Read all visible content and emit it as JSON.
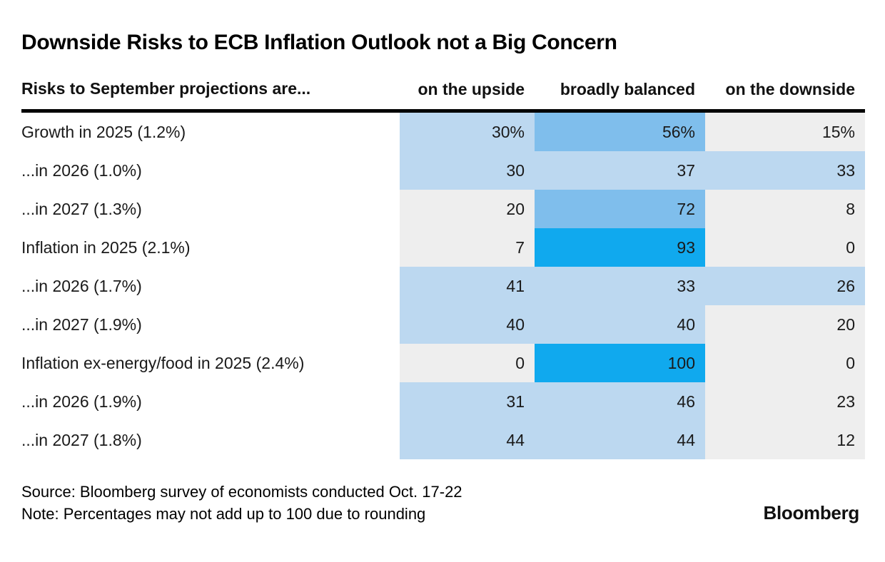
{
  "page": {
    "background": "#FFFFFF",
    "text_color": "#1A1A1A",
    "divider_color": "#000000"
  },
  "chart_data": {
    "type": "heatmap",
    "title": "Downside Risks to ECB Inflation Outlook not a Big Concern",
    "row_axis_label": "Risks to September projections are...",
    "columns": [
      "on the upside",
      "broadly balanced",
      "on the downside"
    ],
    "rows": [
      {
        "label": "Growth in 2025 (1.2%)",
        "values": [
          30,
          56,
          15
        ],
        "display": [
          "30%",
          "56%",
          "15%"
        ]
      },
      {
        "label": "...in 2026 (1.0%)",
        "values": [
          30,
          37,
          33
        ],
        "display": [
          "30",
          "37",
          "33"
        ]
      },
      {
        "label": "...in 2027 (1.3%)",
        "values": [
          20,
          72,
          8
        ],
        "display": [
          "20",
          "72",
          "8"
        ]
      },
      {
        "label": "Inflation in 2025 (2.1%)",
        "values": [
          7,
          93,
          0
        ],
        "display": [
          "7",
          "93",
          "0"
        ]
      },
      {
        "label": "...in 2026 (1.7%)",
        "values": [
          41,
          33,
          26
        ],
        "display": [
          "41",
          "33",
          "26"
        ]
      },
      {
        "label": "...in 2027 (1.9%)",
        "values": [
          40,
          40,
          20
        ],
        "display": [
          "40",
          "40",
          "20"
        ]
      },
      {
        "label": "Inflation ex-energy/food in 2025 (2.4%)",
        "values": [
          0,
          100,
          0
        ],
        "display": [
          "0",
          "100",
          "0"
        ]
      },
      {
        "label": "...in 2026 (1.9%)",
        "values": [
          31,
          46,
          23
        ],
        "display": [
          "31",
          "46",
          "23"
        ]
      },
      {
        "label": "...in 2027 (1.8%)",
        "values": [
          44,
          44,
          12
        ],
        "display": [
          "44",
          "44",
          "12"
        ]
      }
    ],
    "palette": {
      "bands": [
        {
          "max_exclusive": 25,
          "color": "#EEEEEE"
        },
        {
          "max_exclusive": 50,
          "color": "#BCD8F0"
        },
        {
          "max_exclusive": 90,
          "color": "#7FBEEC"
        },
        {
          "max_exclusive": 101,
          "color": "#10A9EE"
        }
      ]
    },
    "value_unit": "percent of surveyed economists",
    "legend_position": "none",
    "grid": false
  },
  "footer": {
    "source": "Source: Bloomberg survey of economists conducted Oct. 17-22",
    "note": "Note: Percentages may not add up to 100 due to rounding",
    "logo": "Bloomberg"
  }
}
